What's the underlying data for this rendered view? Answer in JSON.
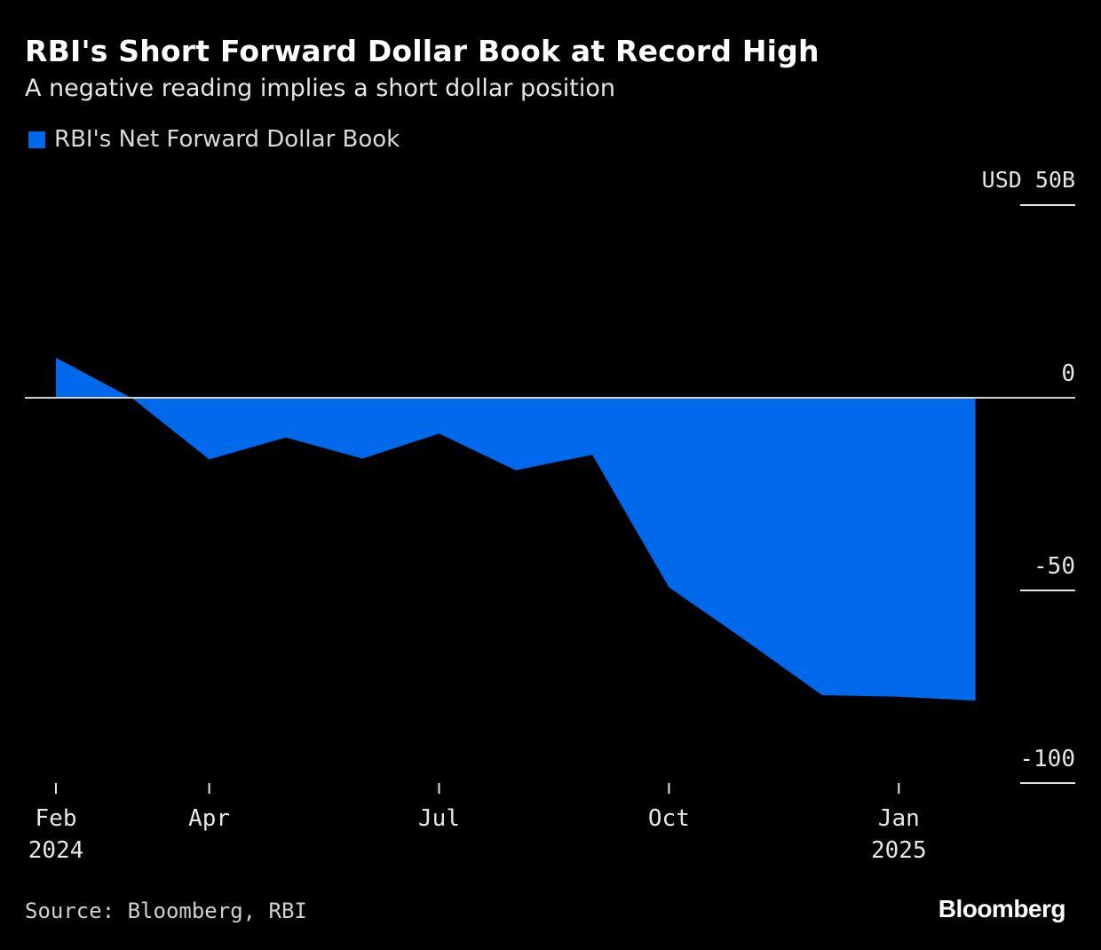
{
  "chart_data": {
    "type": "area",
    "title": "RBI's Short Forward Dollar Book at Record High",
    "subtitle": "A negative reading implies a short dollar position",
    "legend": [
      {
        "name": "RBI's Net Forward Dollar Book",
        "color": "#0068ea"
      }
    ],
    "series": [
      {
        "name": "RBI's Net Forward Dollar Book",
        "x": [
          "2024-02",
          "2024-03",
          "2024-04",
          "2024-05",
          "2024-06",
          "2024-07",
          "2024-08",
          "2024-09",
          "2024-10",
          "2024-11",
          "2024-12",
          "2025-01",
          "2025-02"
        ],
        "values": [
          10.4,
          -0.2,
          -16.0,
          -10.3,
          -15.8,
          -9.3,
          -18.8,
          -14.8,
          -49.2,
          -63.0,
          -77.2,
          -77.6,
          -78.6
        ]
      }
    ],
    "y_axis": {
      "unit_label": "USD",
      "ticks": [
        50,
        0,
        -50,
        -100
      ],
      "tick_labels": [
        "50B",
        "0",
        "-50",
        "-100"
      ],
      "ylim": [
        -100,
        50
      ],
      "position": "right"
    },
    "x_axis": {
      "ticks": [
        {
          "x": "2024-02",
          "label": "Feb",
          "sublabel": "2024"
        },
        {
          "x": "2024-04",
          "label": "Apr",
          "sublabel": ""
        },
        {
          "x": "2024-07",
          "label": "Jul",
          "sublabel": ""
        },
        {
          "x": "2024-10",
          "label": "Oct",
          "sublabel": ""
        },
        {
          "x": "2025-01",
          "label": "Jan",
          "sublabel": "2025"
        }
      ]
    },
    "zero_line": true,
    "grid": false
  },
  "footer": {
    "source": "Source: Bloomberg, RBI",
    "brand": "Bloomberg"
  },
  "colors": {
    "background": "#000000",
    "area": "#0068ea",
    "text": "#ffffff",
    "axis": "#e6e6e6"
  }
}
